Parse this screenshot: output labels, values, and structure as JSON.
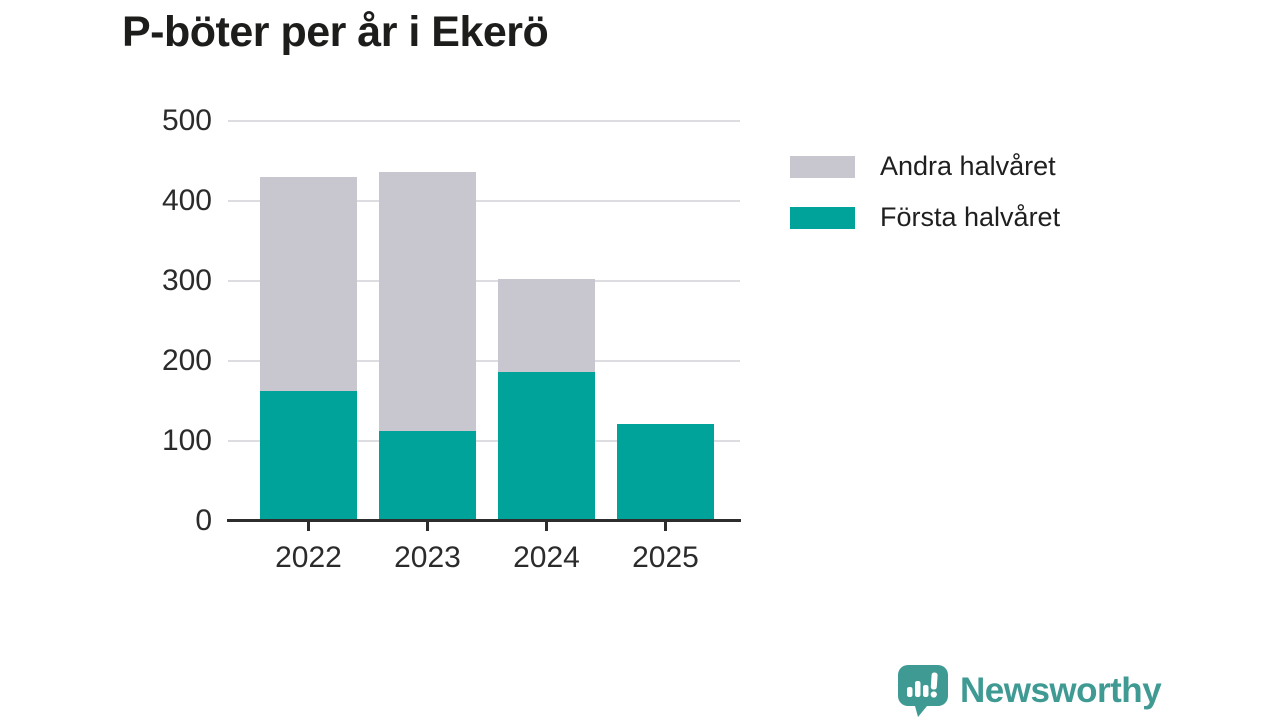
{
  "title": "P-böter per år i Ekerö",
  "legend": [
    {
      "label": "Andra halvåret",
      "color": "#c8c7d0"
    },
    {
      "label": "Första halvåret",
      "color": "#00a39a"
    }
  ],
  "chart_data": {
    "type": "bar",
    "stacked": true,
    "title": "P-böter per år i Ekerö",
    "xlabel": "",
    "ylabel": "",
    "categories": [
      "2022",
      "2023",
      "2024",
      "2025"
    ],
    "series": [
      {
        "name": "Första halvåret",
        "color": "#00a39a",
        "values": [
          163,
          112,
          186,
          121
        ]
      },
      {
        "name": "Andra halvåret",
        "color": "#c8c7d0",
        "values": [
          267,
          324,
          117,
          0
        ]
      }
    ],
    "totals": [
      430,
      436,
      303,
      121
    ],
    "ylim": [
      0,
      500
    ],
    "yticks": [
      0,
      100,
      200,
      300,
      400,
      500
    ],
    "grid": true,
    "legend_position": "right"
  },
  "footer": {
    "brand": "Newsworthy",
    "brand_color": "#3f9a93",
    "logo_icon": "newsworthy-speech-bubble-chart-icon"
  }
}
